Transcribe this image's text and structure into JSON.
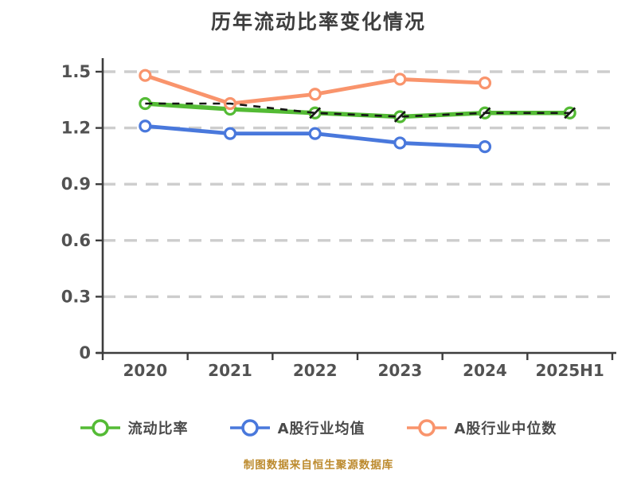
{
  "chart_data": {
    "type": "line",
    "title": "历年流动比率变化情况",
    "categories": [
      "2020",
      "2021",
      "2022",
      "2023",
      "2024",
      "2025H1"
    ],
    "y_ticks": [
      0,
      0.3,
      0.6,
      0.9,
      1.2,
      1.5
    ],
    "ylim": [
      0,
      1.5
    ],
    "grid": "horizontal-dashed",
    "grid_color": "#cdcdcd",
    "axis_color": "#3d3d3d",
    "tick_label_color": "#525252",
    "legend_position": "bottom",
    "series": [
      {
        "key": "current-ratio",
        "name": "流动比率",
        "color": "#54bb35",
        "marker": "circle-outline-white-fill",
        "line_width": 5.5,
        "values": [
          1.33,
          1.3,
          1.28,
          1.26,
          1.28,
          1.28
        ]
      },
      {
        "key": "a-share-industry-mean",
        "name": "A股行业均值",
        "color": "#4978dc",
        "marker": "circle-outline-white-fill",
        "line_width": 4.8,
        "values": [
          1.21,
          1.17,
          1.17,
          1.12,
          1.1,
          null
        ]
      },
      {
        "key": "a-share-industry-median",
        "name": "A股行业中位数",
        "color": "#f9946c",
        "marker": "circle-outline-white-fill",
        "line_width": 4.8,
        "values": [
          1.48,
          1.33,
          1.38,
          1.46,
          1.44,
          null
        ]
      }
    ],
    "overlay": {
      "key": "unlabeled-black-dashed-line",
      "color": "#161616",
      "style": "dashed",
      "values": [
        1.33,
        1.33,
        1.28,
        1.26,
        1.28,
        1.28
      ],
      "marker_slash_indices": [
        2,
        3,
        4,
        5
      ]
    }
  },
  "footer": {
    "source_note": "制图数据来自恒生聚源数据库",
    "color": "#bc8a2d"
  }
}
